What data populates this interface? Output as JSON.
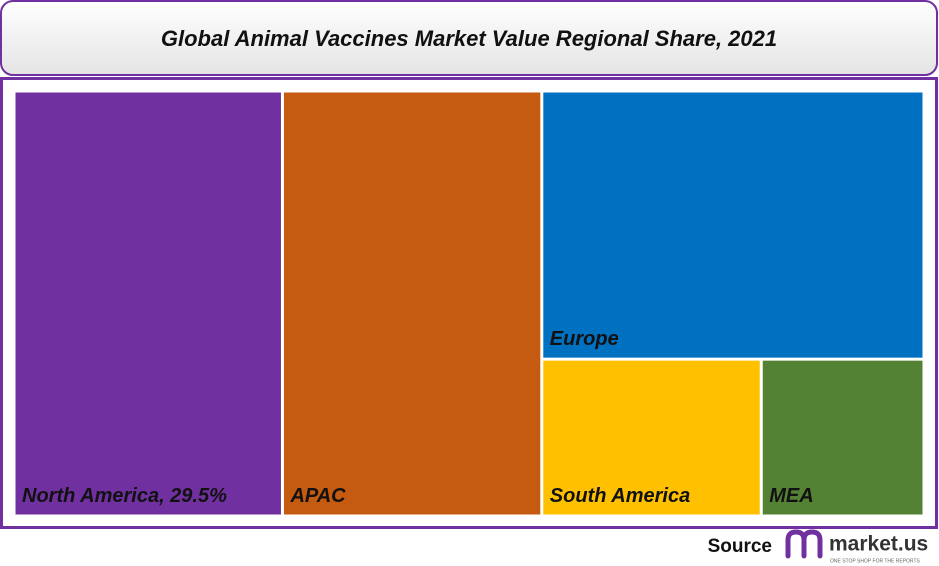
{
  "chart_data": {
    "type": "treemap",
    "title": "Global Animal Vaccines Market Value Regional Share, 2021",
    "categories": [
      "North America, 29.5%",
      "APAC",
      "Europe",
      "South America",
      "MEA"
    ],
    "values": [
      29.5,
      28.5,
      26.5,
      8.9,
      6.6
    ],
    "colors": [
      "#7030a0",
      "#c55a11",
      "#0070c0",
      "#ffc000",
      "#548235"
    ]
  },
  "footer": {
    "source": "Source",
    "logo": "market.us",
    "tagline": "ONE STOP SHOP FOR THE REPORTS"
  }
}
